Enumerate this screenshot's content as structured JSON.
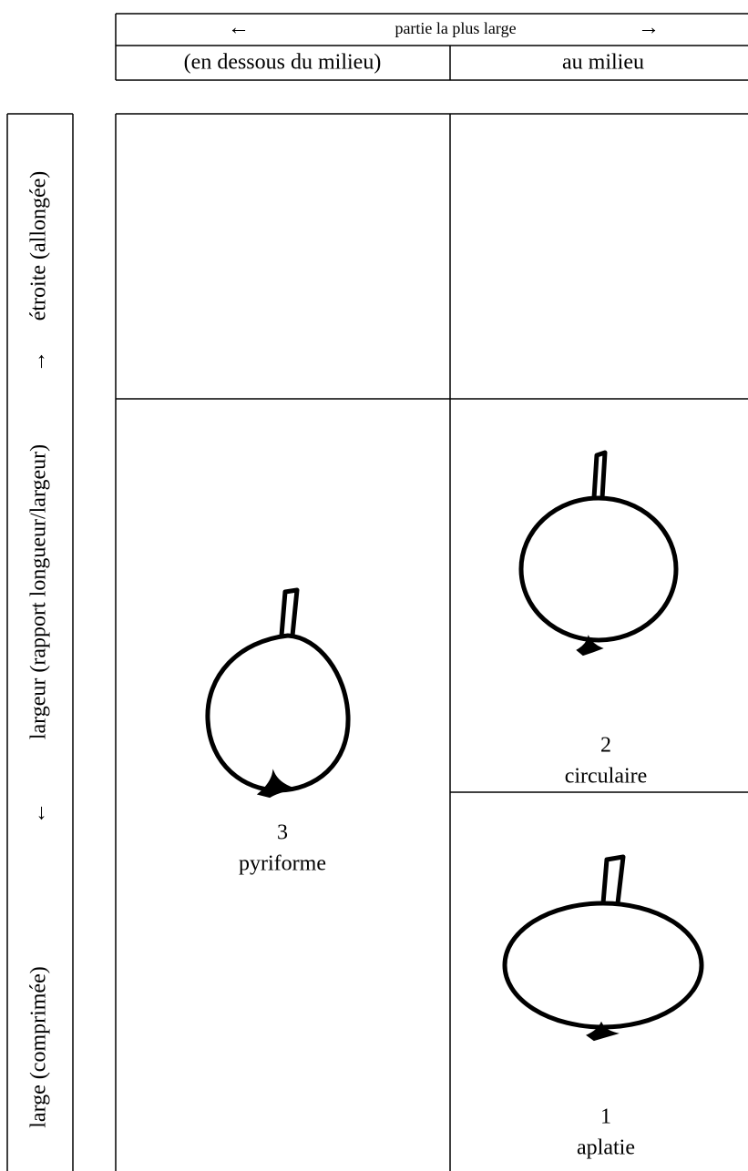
{
  "header": {
    "arrow_left": "←",
    "title": "partie la plus large",
    "arrow_right": "→",
    "columns": [
      "(en dessous du milieu)",
      "au milieu"
    ]
  },
  "side": {
    "top": "étroite (allongée)",
    "arrow_up": "→",
    "middle": "largeur (rapport longueur/largeur)",
    "arrow_down": "←",
    "bottom": "large (comprimée)"
  },
  "cells": [
    {
      "number": "3",
      "name": "pyriforme"
    },
    {
      "number": "2",
      "name": "circulaire"
    },
    {
      "number": "1",
      "name": "aplatie"
    }
  ]
}
